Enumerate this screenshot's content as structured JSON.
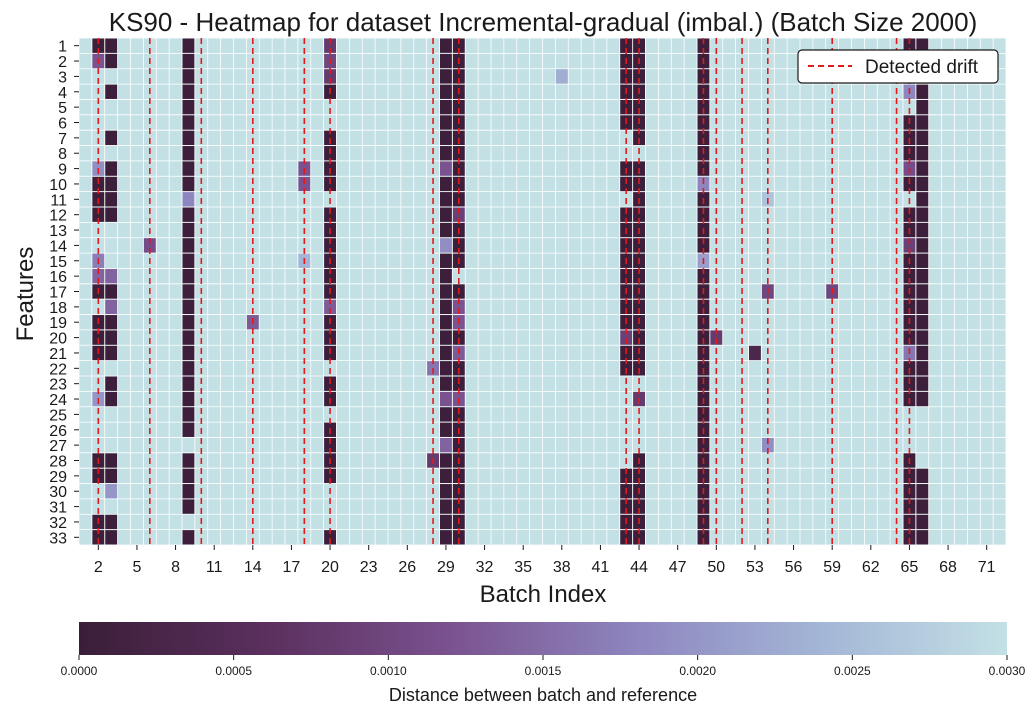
{
  "chart_data": {
    "type": "heatmap",
    "title": "KS90 - Heatmap for dataset Incremental-gradual (imbal.) (Batch Size 2000)",
    "xlabel": "Batch Index",
    "ylabel": "Features",
    "batch_range": [
      1,
      72
    ],
    "x_tick_labels": [
      2,
      5,
      8,
      11,
      14,
      17,
      20,
      23,
      26,
      29,
      32,
      35,
      38,
      41,
      44,
      47,
      50,
      53,
      56,
      59,
      62,
      65,
      68,
      71
    ],
    "features": [
      1,
      2,
      3,
      4,
      5,
      6,
      7,
      8,
      9,
      10,
      11,
      12,
      13,
      14,
      15,
      16,
      17,
      18,
      19,
      20,
      21,
      22,
      23,
      24,
      25,
      26,
      27,
      28,
      29,
      30,
      31,
      32,
      33
    ],
    "legend": {
      "label": "Detected drift",
      "position": "upper-right"
    },
    "detected_drift_batches": [
      2,
      6,
      10,
      14,
      18,
      20,
      28,
      30,
      43,
      44,
      49,
      50,
      52,
      54,
      59,
      64,
      65
    ],
    "colorbar": {
      "label": "Distance between batch and reference",
      "range": [
        0.0,
        0.003
      ],
      "ticks": [
        "0.0000",
        "0.0005",
        "0.0010",
        "0.0015",
        "0.0020",
        "0.0025",
        "0.0030"
      ],
      "colors": [
        "#3a1e38",
        "#5a2f5d",
        "#7a528f",
        "#8e86bf",
        "#a3b6d6",
        "#c3e0e5"
      ]
    },
    "dark_cells": [
      [
        1,
        2
      ],
      [
        1,
        3
      ],
      [
        1,
        9
      ],
      [
        1,
        29
      ],
      [
        1,
        30
      ],
      [
        1,
        43
      ],
      [
        1,
        44
      ],
      [
        1,
        49
      ],
      [
        1,
        65
      ],
      [
        1,
        66
      ],
      [
        2,
        3
      ],
      [
        2,
        9
      ],
      [
        2,
        29
      ],
      [
        2,
        30
      ],
      [
        2,
        43
      ],
      [
        2,
        44
      ],
      [
        2,
        49
      ],
      [
        2,
        65
      ],
      [
        2,
        66
      ],
      [
        3,
        9
      ],
      [
        3,
        29
      ],
      [
        3,
        30
      ],
      [
        3,
        43
      ],
      [
        3,
        44
      ],
      [
        3,
        49
      ],
      [
        3,
        65
      ],
      [
        3,
        66
      ],
      [
        4,
        3
      ],
      [
        4,
        9
      ],
      [
        4,
        20
      ],
      [
        4,
        29
      ],
      [
        4,
        30
      ],
      [
        4,
        43
      ],
      [
        4,
        44
      ],
      [
        4,
        49
      ],
      [
        4,
        66
      ],
      [
        5,
        9
      ],
      [
        5,
        29
      ],
      [
        5,
        30
      ],
      [
        5,
        43
      ],
      [
        5,
        44
      ],
      [
        5,
        49
      ],
      [
        5,
        66
      ],
      [
        6,
        9
      ],
      [
        6,
        29
      ],
      [
        6,
        30
      ],
      [
        6,
        43
      ],
      [
        6,
        44
      ],
      [
        6,
        49
      ],
      [
        6,
        65
      ],
      [
        6,
        66
      ],
      [
        7,
        3
      ],
      [
        7,
        9
      ],
      [
        7,
        20
      ],
      [
        7,
        29
      ],
      [
        7,
        30
      ],
      [
        7,
        44
      ],
      [
        7,
        49
      ],
      [
        7,
        65
      ],
      [
        7,
        66
      ],
      [
        8,
        9
      ],
      [
        8,
        20
      ],
      [
        8,
        29
      ],
      [
        8,
        30
      ],
      [
        8,
        49
      ],
      [
        8,
        65
      ],
      [
        8,
        66
      ],
      [
        9,
        3
      ],
      [
        9,
        9
      ],
      [
        9,
        20
      ],
      [
        9,
        30
      ],
      [
        9,
        43
      ],
      [
        9,
        44
      ],
      [
        9,
        49
      ],
      [
        9,
        66
      ],
      [
        10,
        2
      ],
      [
        10,
        3
      ],
      [
        10,
        9
      ],
      [
        10,
        20
      ],
      [
        10,
        29
      ],
      [
        10,
        30
      ],
      [
        10,
        43
      ],
      [
        10,
        44
      ],
      [
        10,
        65
      ],
      [
        10,
        66
      ],
      [
        11,
        2
      ],
      [
        11,
        3
      ],
      [
        11,
        29
      ],
      [
        11,
        30
      ],
      [
        11,
        44
      ],
      [
        11,
        49
      ],
      [
        11,
        66
      ],
      [
        12,
        2
      ],
      [
        12,
        3
      ],
      [
        12,
        9
      ],
      [
        12,
        20
      ],
      [
        12,
        29
      ],
      [
        12,
        43
      ],
      [
        12,
        44
      ],
      [
        12,
        49
      ],
      [
        12,
        65
      ],
      [
        12,
        66
      ],
      [
        13,
        9
      ],
      [
        13,
        20
      ],
      [
        13,
        29
      ],
      [
        13,
        30
      ],
      [
        13,
        43
      ],
      [
        13,
        44
      ],
      [
        13,
        49
      ],
      [
        13,
        65
      ],
      [
        13,
        66
      ],
      [
        14,
        9
      ],
      [
        14,
        20
      ],
      [
        14,
        30
      ],
      [
        14,
        43
      ],
      [
        14,
        44
      ],
      [
        14,
        49
      ],
      [
        14,
        66
      ],
      [
        15,
        9
      ],
      [
        15,
        20
      ],
      [
        15,
        29
      ],
      [
        15,
        30
      ],
      [
        15,
        43
      ],
      [
        15,
        44
      ],
      [
        15,
        65
      ],
      [
        15,
        66
      ],
      [
        16,
        9
      ],
      [
        16,
        20
      ],
      [
        16,
        29
      ],
      [
        16,
        43
      ],
      [
        16,
        44
      ],
      [
        16,
        49
      ],
      [
        16,
        65
      ],
      [
        16,
        66
      ],
      [
        17,
        2
      ],
      [
        17,
        3
      ],
      [
        17,
        9
      ],
      [
        17,
        20
      ],
      [
        17,
        29
      ],
      [
        17,
        30
      ],
      [
        17,
        43
      ],
      [
        17,
        44
      ],
      [
        17,
        49
      ],
      [
        17,
        65
      ],
      [
        17,
        66
      ],
      [
        18,
        9
      ],
      [
        18,
        29
      ],
      [
        18,
        43
      ],
      [
        18,
        44
      ],
      [
        18,
        49
      ],
      [
        18,
        65
      ],
      [
        18,
        66
      ],
      [
        19,
        2
      ],
      [
        19,
        3
      ],
      [
        19,
        9
      ],
      [
        19,
        20
      ],
      [
        19,
        29
      ],
      [
        19,
        43
      ],
      [
        19,
        44
      ],
      [
        19,
        49
      ],
      [
        19,
        65
      ],
      [
        19,
        66
      ],
      [
        20,
        2
      ],
      [
        20,
        3
      ],
      [
        20,
        9
      ],
      [
        20,
        20
      ],
      [
        20,
        29
      ],
      [
        20,
        30
      ],
      [
        20,
        44
      ],
      [
        20,
        49
      ],
      [
        20,
        65
      ],
      [
        20,
        66
      ],
      [
        21,
        2
      ],
      [
        21,
        3
      ],
      [
        21,
        9
      ],
      [
        21,
        20
      ],
      [
        21,
        29
      ],
      [
        21,
        43
      ],
      [
        21,
        44
      ],
      [
        21,
        49
      ],
      [
        21,
        66
      ],
      [
        22,
        9
      ],
      [
        22,
        29
      ],
      [
        22,
        30
      ],
      [
        22,
        43
      ],
      [
        22,
        44
      ],
      [
        22,
        49
      ],
      [
        22,
        65
      ],
      [
        22,
        66
      ],
      [
        23,
        3
      ],
      [
        23,
        9
      ],
      [
        23,
        20
      ],
      [
        23,
        29
      ],
      [
        23,
        30
      ],
      [
        23,
        49
      ],
      [
        23,
        65
      ],
      [
        23,
        66
      ],
      [
        24,
        3
      ],
      [
        24,
        9
      ],
      [
        24,
        20
      ],
      [
        24,
        49
      ],
      [
        24,
        65
      ],
      [
        24,
        66
      ],
      [
        25,
        9
      ],
      [
        25,
        29
      ],
      [
        25,
        30
      ],
      [
        25,
        49
      ],
      [
        26,
        9
      ],
      [
        26,
        20
      ],
      [
        26,
        29
      ],
      [
        26,
        30
      ],
      [
        26,
        49
      ],
      [
        27,
        20
      ],
      [
        27,
        30
      ],
      [
        27,
        49
      ],
      [
        28,
        2
      ],
      [
        28,
        3
      ],
      [
        28,
        9
      ],
      [
        28,
        20
      ],
      [
        28,
        29
      ],
      [
        28,
        30
      ],
      [
        28,
        44
      ],
      [
        28,
        49
      ],
      [
        28,
        65
      ],
      [
        29,
        2
      ],
      [
        29,
        3
      ],
      [
        29,
        9
      ],
      [
        29,
        20
      ],
      [
        29,
        29
      ],
      [
        29,
        30
      ],
      [
        29,
        43
      ],
      [
        29,
        44
      ],
      [
        29,
        49
      ],
      [
        29,
        65
      ],
      [
        29,
        66
      ],
      [
        30,
        9
      ],
      [
        30,
        29
      ],
      [
        30,
        30
      ],
      [
        30,
        43
      ],
      [
        30,
        44
      ],
      [
        30,
        49
      ],
      [
        30,
        65
      ],
      [
        30,
        66
      ],
      [
        31,
        9
      ],
      [
        31,
        29
      ],
      [
        31,
        30
      ],
      [
        31,
        43
      ],
      [
        31,
        44
      ],
      [
        31,
        49
      ],
      [
        31,
        65
      ],
      [
        31,
        66
      ],
      [
        32,
        2
      ],
      [
        32,
        3
      ],
      [
        32,
        29
      ],
      [
        32,
        30
      ],
      [
        32,
        43
      ],
      [
        32,
        44
      ],
      [
        32,
        49
      ],
      [
        32,
        65
      ],
      [
        32,
        66
      ],
      [
        33,
        2
      ],
      [
        33,
        3
      ],
      [
        33,
        9
      ],
      [
        33,
        20
      ],
      [
        33,
        29
      ],
      [
        33,
        30
      ],
      [
        33,
        43
      ],
      [
        33,
        44
      ],
      [
        33,
        49
      ],
      [
        33,
        65
      ],
      [
        33,
        66
      ]
    ],
    "mid_cells": [
      [
        2,
        2,
        0.0012
      ],
      [
        2,
        20,
        0.001
      ],
      [
        1,
        20,
        0.0008
      ],
      [
        1,
        43,
        0.0006
      ],
      [
        4,
        65,
        0.0018
      ],
      [
        3,
        38,
        0.0023
      ],
      [
        3,
        20,
        0.0008
      ],
      [
        9,
        2,
        0.0019
      ],
      [
        9,
        18,
        0.0012
      ],
      [
        9,
        29,
        0.0012
      ],
      [
        9,
        65,
        0.0011
      ],
      [
        10,
        18,
        0.0012
      ],
      [
        10,
        43,
        0.0018
      ],
      [
        10,
        49,
        0.0018
      ],
      [
        11,
        9,
        0.0018
      ],
      [
        11,
        29,
        0.0012
      ],
      [
        11,
        54,
        0.0026
      ],
      [
        12,
        30,
        0.0009
      ],
      [
        14,
        6,
        0.0011
      ],
      [
        14,
        29,
        0.0019
      ],
      [
        14,
        65,
        0.0009
      ],
      [
        15,
        2,
        0.0017
      ],
      [
        15,
        18,
        0.0024
      ],
      [
        15,
        49,
        0.0021
      ],
      [
        16,
        2,
        0.0014
      ],
      [
        16,
        3,
        0.0014
      ],
      [
        17,
        54,
        0.001
      ],
      [
        17,
        59,
        0.001
      ],
      [
        18,
        3,
        0.0014
      ],
      [
        18,
        20,
        0.0013
      ],
      [
        18,
        30,
        0.0012
      ],
      [
        19,
        14,
        0.0013
      ],
      [
        19,
        30,
        0.0012
      ],
      [
        20,
        43,
        0.0009
      ],
      [
        20,
        50,
        0.0008
      ],
      [
        21,
        30,
        0.0013
      ],
      [
        21,
        53,
        0.0003
      ],
      [
        21,
        65,
        0.0016
      ],
      [
        22,
        28,
        0.0016
      ],
      [
        24,
        2,
        0.002
      ],
      [
        24,
        29,
        0.0012
      ],
      [
        24,
        30,
        0.0012
      ],
      [
        24,
        44,
        0.0008
      ],
      [
        25,
        49,
        0.0014
      ],
      [
        27,
        29,
        0.0014
      ],
      [
        27,
        54,
        0.0019
      ],
      [
        28,
        28,
        0.0008
      ],
      [
        30,
        3,
        0.002
      ]
    ]
  }
}
